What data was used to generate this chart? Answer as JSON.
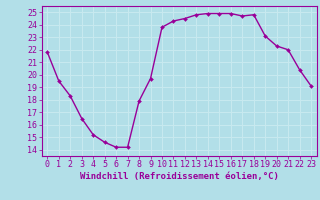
{
  "x": [
    0,
    1,
    2,
    3,
    4,
    5,
    6,
    7,
    8,
    9,
    10,
    11,
    12,
    13,
    14,
    15,
    16,
    17,
    18,
    19,
    20,
    21,
    22,
    23
  ],
  "y": [
    21.8,
    19.5,
    18.3,
    16.5,
    15.2,
    14.6,
    14.2,
    14.2,
    17.9,
    19.7,
    23.8,
    24.3,
    24.5,
    24.8,
    24.9,
    24.9,
    24.9,
    24.7,
    24.8,
    23.1,
    22.3,
    22.0,
    20.4,
    19.1
  ],
  "line_color": "#990099",
  "marker": "D",
  "marker_size": 2,
  "line_width": 1.0,
  "bg_color": "#b2dfe8",
  "grid_color": "#c8eaf0",
  "xlabel": "Windchill (Refroidissement éolien,°C)",
  "xlabel_color": "#990099",
  "xlabel_fontsize": 6.5,
  "tick_fontsize": 6,
  "xlim": [
    -0.5,
    23.5
  ],
  "ylim": [
    13.5,
    25.5
  ],
  "yticks": [
    14,
    15,
    16,
    17,
    18,
    19,
    20,
    21,
    22,
    23,
    24,
    25
  ],
  "xticks": [
    0,
    1,
    2,
    3,
    4,
    5,
    6,
    7,
    8,
    9,
    10,
    11,
    12,
    13,
    14,
    15,
    16,
    17,
    18,
    19,
    20,
    21,
    22,
    23
  ]
}
